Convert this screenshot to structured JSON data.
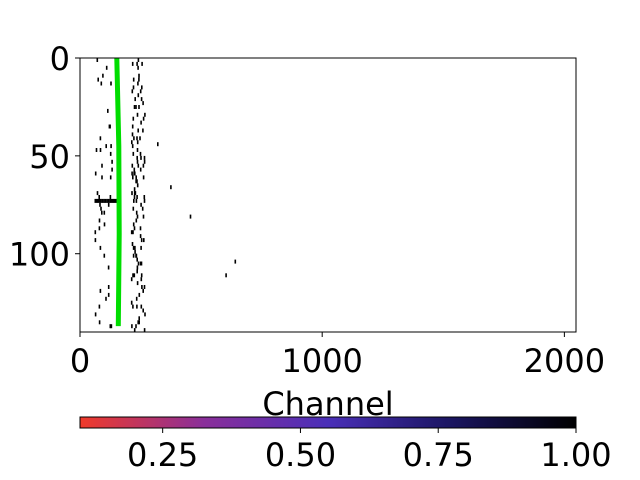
{
  "chart_data": {
    "type": "heatmap",
    "title": "",
    "xlabel": "Channel",
    "ylabel": "",
    "xlim": [
      0,
      2048
    ],
    "ylim": [
      140,
      0
    ],
    "x_ticks": [
      0,
      1000,
      2000
    ],
    "x_tick_labels": [
      "0",
      "1000",
      "2000"
    ],
    "y_ticks": [
      0,
      50,
      100
    ],
    "y_tick_labels": [
      "0",
      "50",
      "100"
    ],
    "grid": false,
    "colorbar": {
      "orientation": "horizontal",
      "placement": "bottom",
      "range": [
        0.1,
        1.0
      ],
      "ticks": [
        0.25,
        0.5,
        0.75,
        1.0
      ],
      "tick_labels": [
        "0.25",
        "0.50",
        "0.75",
        "1.00"
      ],
      "colors": [
        "#f03a2a",
        "#8a2f9a",
        "#4a2fb8",
        "#1a1560",
        "#000000"
      ]
    },
    "hits": {
      "band_left": {
        "x_range": [
          60,
          130
        ],
        "row_density": 0.45
      },
      "band_right": {
        "x_range": [
          210,
          265
        ],
        "row_density": 0.9
      },
      "isolated": [
        {
          "x": 318,
          "y": 43
        },
        {
          "x": 372,
          "y": 65
        },
        {
          "x": 453,
          "y": 80
        },
        {
          "x": 638,
          "y": 103
        },
        {
          "x": 600,
          "y": 110
        }
      ],
      "dense_row": {
        "y": 72,
        "x_range": [
          60,
          160
        ]
      }
    },
    "fit_line": {
      "color": "#00dd00",
      "points": [
        {
          "x": 152,
          "y": 0
        },
        {
          "x": 160,
          "y": 45
        },
        {
          "x": 162,
          "y": 90
        },
        {
          "x": 158,
          "y": 137
        }
      ]
    }
  }
}
